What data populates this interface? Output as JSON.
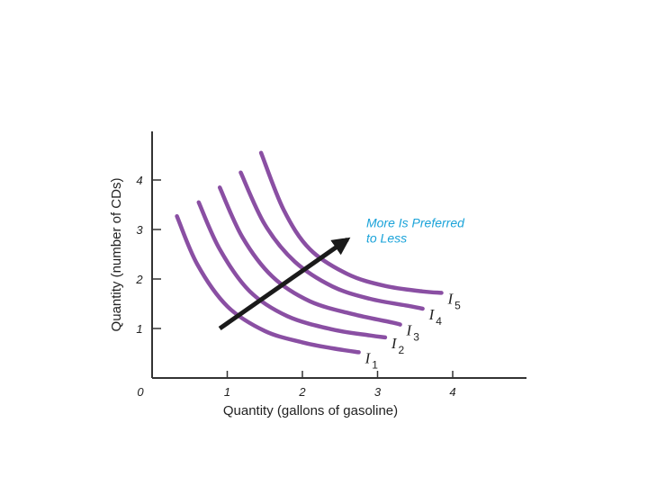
{
  "colors": {
    "curve": "#8a4fa3",
    "axis": "#333333",
    "arrow": "#1a1a1a",
    "annotation": "#1aa3d9"
  },
  "chart_data": {
    "type": "line",
    "xlabel": "Quantity (gallons of gasoline)",
    "ylabel": "Quantity (number of CDs)",
    "origin_label": "0",
    "xlim": [
      0,
      5
    ],
    "ylim": [
      0,
      4.7
    ],
    "x_ticks": [
      1,
      2,
      3,
      4
    ],
    "y_ticks": [
      1,
      2,
      3,
      4
    ],
    "x_tick_labels": [
      "1",
      "2",
      "3",
      "4"
    ],
    "y_tick_labels": [
      "1",
      "2",
      "3",
      "4"
    ],
    "grid": false,
    "series": [
      {
        "name": "I",
        "sub": "1",
        "x": [
          0.33,
          0.6,
          1.0,
          1.5,
          2.0,
          2.4,
          2.75
        ],
        "y": [
          3.27,
          2.3,
          1.45,
          0.95,
          0.72,
          0.6,
          0.52
        ]
      },
      {
        "name": "I",
        "sub": "2",
        "x": [
          0.62,
          0.9,
          1.3,
          1.8,
          2.4,
          2.9,
          3.1
        ],
        "y": [
          3.55,
          2.6,
          1.75,
          1.25,
          0.98,
          0.86,
          0.82
        ]
      },
      {
        "name": "I",
        "sub": "3",
        "x": [
          0.9,
          1.2,
          1.6,
          2.1,
          2.7,
          3.2,
          3.3
        ],
        "y": [
          3.85,
          2.85,
          2.05,
          1.55,
          1.28,
          1.12,
          1.08
        ]
      },
      {
        "name": "I",
        "sub": "4",
        "x": [
          1.18,
          1.5,
          1.9,
          2.4,
          2.9,
          3.4,
          3.6
        ],
        "y": [
          4.15,
          3.1,
          2.35,
          1.85,
          1.6,
          1.46,
          1.4
        ]
      },
      {
        "name": "I",
        "sub": "5",
        "x": [
          1.45,
          1.75,
          2.1,
          2.6,
          3.1,
          3.6,
          3.85
        ],
        "y": [
          4.55,
          3.4,
          2.6,
          2.1,
          1.86,
          1.75,
          1.72
        ]
      }
    ],
    "arrow": {
      "from": [
        0.9,
        1.0
      ],
      "to": [
        2.6,
        2.8
      ]
    },
    "annotation": {
      "lines": [
        "More Is Preferred",
        "to Less"
      ],
      "at": [
        2.85,
        3.05
      ]
    }
  }
}
